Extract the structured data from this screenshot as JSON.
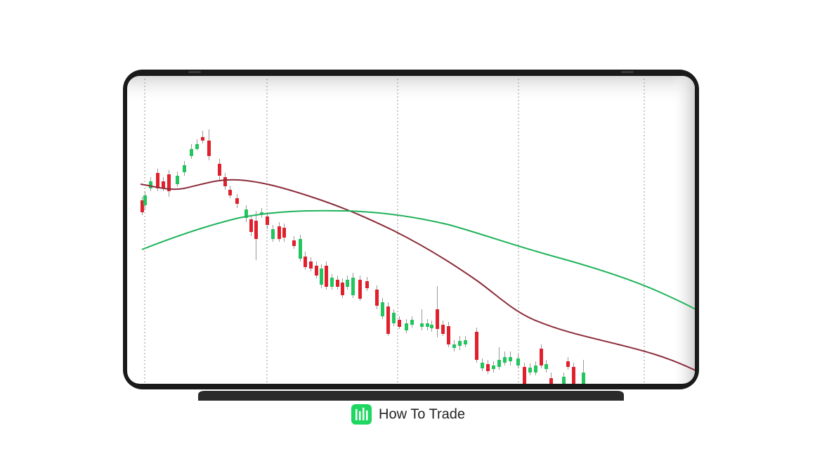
{
  "brand": {
    "name": "How To Trade"
  }
}
